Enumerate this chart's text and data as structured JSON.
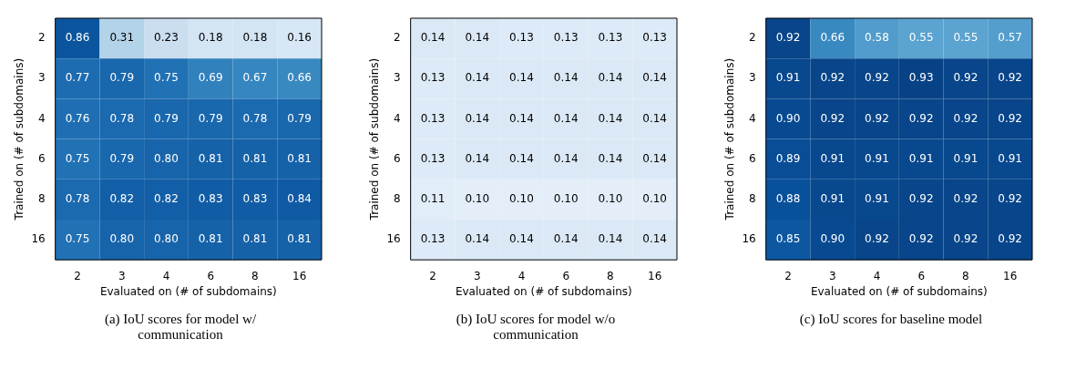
{
  "chart_data": [
    {
      "type": "heatmap",
      "xlabel": "Evaluated on (# of subdomains)",
      "ylabel": "Trained on (# of subdomains)",
      "categories": [
        "2",
        "3",
        "4",
        "6",
        "8",
        "16"
      ],
      "y_categories": [
        "2",
        "3",
        "4",
        "6",
        "8",
        "16"
      ],
      "data_labels": true,
      "cells": [
        [
          0.86,
          0.31,
          0.23,
          0.18,
          0.18,
          0.16
        ],
        [
          0.77,
          0.79,
          0.75,
          0.69,
          0.67,
          0.66
        ],
        [
          0.76,
          0.78,
          0.79,
          0.79,
          0.78,
          0.79
        ],
        [
          0.75,
          0.79,
          0.8,
          0.81,
          0.81,
          0.81
        ],
        [
          0.78,
          0.82,
          0.82,
          0.83,
          0.83,
          0.84
        ],
        [
          0.75,
          0.8,
          0.8,
          0.81,
          0.81,
          0.81
        ]
      ],
      "cell_labels": [
        [
          "0.86",
          "0.31",
          "0.23",
          "0.18",
          "0.18",
          "0.16"
        ],
        [
          "0.77",
          "0.79",
          "0.75",
          "0.69",
          "0.67",
          "0.66"
        ],
        [
          "0.76",
          "0.78",
          "0.79",
          "0.79",
          "0.78",
          "0.79"
        ],
        [
          "0.75",
          "0.79",
          "0.80",
          "0.81",
          "0.81",
          "0.81"
        ],
        [
          "0.78",
          "0.82",
          "0.82",
          "0.83",
          "0.83",
          "0.84"
        ],
        [
          "0.75",
          "0.80",
          "0.80",
          "0.81",
          "0.81",
          "0.81"
        ]
      ],
      "annotations": [
        "(a) IoU scores for model w/ communication"
      ]
    },
    {
      "type": "heatmap",
      "xlabel": "Evaluated on (# of subdomains)",
      "ylabel": "Trained on (# of subdomains)",
      "categories": [
        "2",
        "3",
        "4",
        "6",
        "8",
        "16"
      ],
      "y_categories": [
        "2",
        "3",
        "4",
        "6",
        "8",
        "16"
      ],
      "data_labels": true,
      "cells": [
        [
          0.14,
          0.14,
          0.13,
          0.13,
          0.13,
          0.13
        ],
        [
          0.13,
          0.14,
          0.14,
          0.14,
          0.14,
          0.14
        ],
        [
          0.13,
          0.14,
          0.14,
          0.14,
          0.14,
          0.14
        ],
        [
          0.13,
          0.14,
          0.14,
          0.14,
          0.14,
          0.14
        ],
        [
          0.11,
          0.1,
          0.1,
          0.1,
          0.1,
          0.1
        ],
        [
          0.13,
          0.14,
          0.14,
          0.14,
          0.14,
          0.14
        ]
      ],
      "cell_labels": [
        [
          "0.14",
          "0.14",
          "0.13",
          "0.13",
          "0.13",
          "0.13"
        ],
        [
          "0.13",
          "0.14",
          "0.14",
          "0.14",
          "0.14",
          "0.14"
        ],
        [
          "0.13",
          "0.14",
          "0.14",
          "0.14",
          "0.14",
          "0.14"
        ],
        [
          "0.13",
          "0.14",
          "0.14",
          "0.14",
          "0.14",
          "0.14"
        ],
        [
          "0.11",
          "0.10",
          "0.10",
          "0.10",
          "0.10",
          "0.10"
        ],
        [
          "0.13",
          "0.14",
          "0.14",
          "0.14",
          "0.14",
          "0.14"
        ]
      ],
      "annotations": [
        "(b) IoU scores for model w/o communication"
      ]
    },
    {
      "type": "heatmap",
      "xlabel": "Evaluated on (# of subdomains)",
      "ylabel": "Trained on (# of subdomains)",
      "categories": [
        "2",
        "3",
        "4",
        "6",
        "8",
        "16"
      ],
      "y_categories": [
        "2",
        "3",
        "4",
        "6",
        "8",
        "16"
      ],
      "data_labels": true,
      "cells": [
        [
          0.92,
          0.66,
          0.58,
          0.55,
          0.55,
          0.57
        ],
        [
          0.91,
          0.92,
          0.92,
          0.93,
          0.92,
          0.92
        ],
        [
          0.9,
          0.92,
          0.92,
          0.92,
          0.92,
          0.92
        ],
        [
          0.89,
          0.91,
          0.91,
          0.91,
          0.91,
          0.91
        ],
        [
          0.88,
          0.91,
          0.91,
          0.92,
          0.92,
          0.92
        ],
        [
          0.85,
          0.9,
          0.92,
          0.92,
          0.92,
          0.92
        ]
      ],
      "cell_labels": [
        [
          "0.92",
          "0.66",
          "0.58",
          "0.55",
          "0.55",
          "0.57"
        ],
        [
          "0.91",
          "0.92",
          "0.92",
          "0.93",
          "0.92",
          "0.92"
        ],
        [
          "0.90",
          "0.92",
          "0.92",
          "0.92",
          "0.92",
          "0.92"
        ],
        [
          "0.89",
          "0.91",
          "0.91",
          "0.91",
          "0.91",
          "0.91"
        ],
        [
          "0.88",
          "0.91",
          "0.91",
          "0.92",
          "0.92",
          "0.92"
        ],
        [
          "0.85",
          "0.90",
          "0.92",
          "0.92",
          "0.92",
          "0.92"
        ]
      ],
      "annotations": [
        "(c) IoU scores for baseline model"
      ]
    }
  ]
}
